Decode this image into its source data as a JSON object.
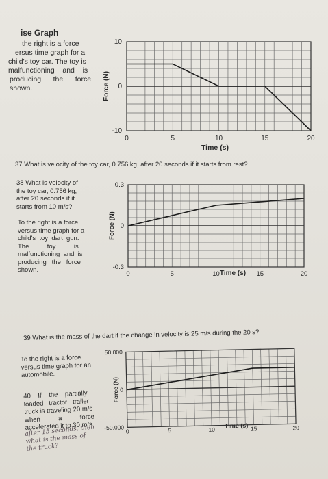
{
  "section": {
    "title": "ise Graph",
    "intro_lines": [
      "the right is a force",
      "ersus time graph for a",
      "child's toy car. The toy is",
      "malfunctioning    and    is",
      "producing      the      force",
      "shown."
    ]
  },
  "q37": "37 What is velocity of the toy car, 0.756 kg, after 20 seconds if it starts from rest?",
  "q38": {
    "lines": [
      "38 What is velocity of",
      "the toy car, 0.756 kg,",
      "after 20 seconds if it",
      "starts from 10 m/s?"
    ]
  },
  "desc2": {
    "lines": [
      "To the right is a force",
      "versus time graph for a",
      "child's  toy  dart  gun.",
      "The          toy          is",
      "malfunctioning  and  is",
      "producing   the   force",
      "shown."
    ]
  },
  "q39": "39 What is the mass of the dart if the change in velocity is 25 m/s during the 20 s?",
  "desc3": {
    "lines": [
      "To the right is a force",
      "versus time graph for an",
      "automobile."
    ]
  },
  "q40": {
    "lines": [
      "40    If    the    partially",
      "loaded   tractor   trailer",
      "truck is traveling 20 m/s",
      "when          a          force",
      "accelerated it to 30 m/s"
    ]
  },
  "handwriting": [
    "after 15 seconds, then",
    "what is the mass of",
    "the truck?"
  ],
  "chart_data": [
    {
      "type": "line",
      "x": [
        0,
        5,
        10,
        15,
        20
      ],
      "series": [
        {
          "points": [
            [
              0,
              5
            ],
            [
              5,
              5
            ],
            [
              10,
              0
            ],
            [
              15,
              0
            ],
            [
              20,
              -10
            ]
          ]
        }
      ],
      "xlabel": "Time (s)",
      "ylabel": "Force (N)",
      "xlim": [
        0,
        20
      ],
      "ylim": [
        -10,
        10
      ],
      "xticks": [
        "0",
        "5",
        "10",
        "15",
        "20"
      ],
      "yticks": [
        "10",
        "0",
        "-10"
      ],
      "grid": true
    },
    {
      "type": "line",
      "series": [
        {
          "points": [
            [
              0,
              0
            ],
            [
              10,
              0.15
            ],
            [
              20,
              0.2
            ]
          ]
        }
      ],
      "xlabel": "Time (s)",
      "ylabel": "Force (N)",
      "xlim": [
        0,
        20
      ],
      "ylim": [
        -0.3,
        0.3
      ],
      "xticks": [
        "0",
        "5",
        "10",
        "15",
        "20"
      ],
      "yticks": [
        "0.3",
        "0",
        "-0.3"
      ],
      "grid": true
    },
    {
      "type": "line",
      "series": [
        {
          "points": [
            [
              0,
              0
            ],
            [
              15,
              25000
            ],
            [
              20,
              25000
            ]
          ]
        }
      ],
      "xlabel": "Time (s)",
      "ylabel": "Force (N)",
      "xlim": [
        0,
        20
      ],
      "ylim": [
        -50000,
        50000
      ],
      "xticks": [
        "0",
        "5",
        "10",
        "15",
        "20"
      ],
      "yticks": [
        "50,000",
        "0",
        "-50,000"
      ],
      "grid": true
    }
  ]
}
